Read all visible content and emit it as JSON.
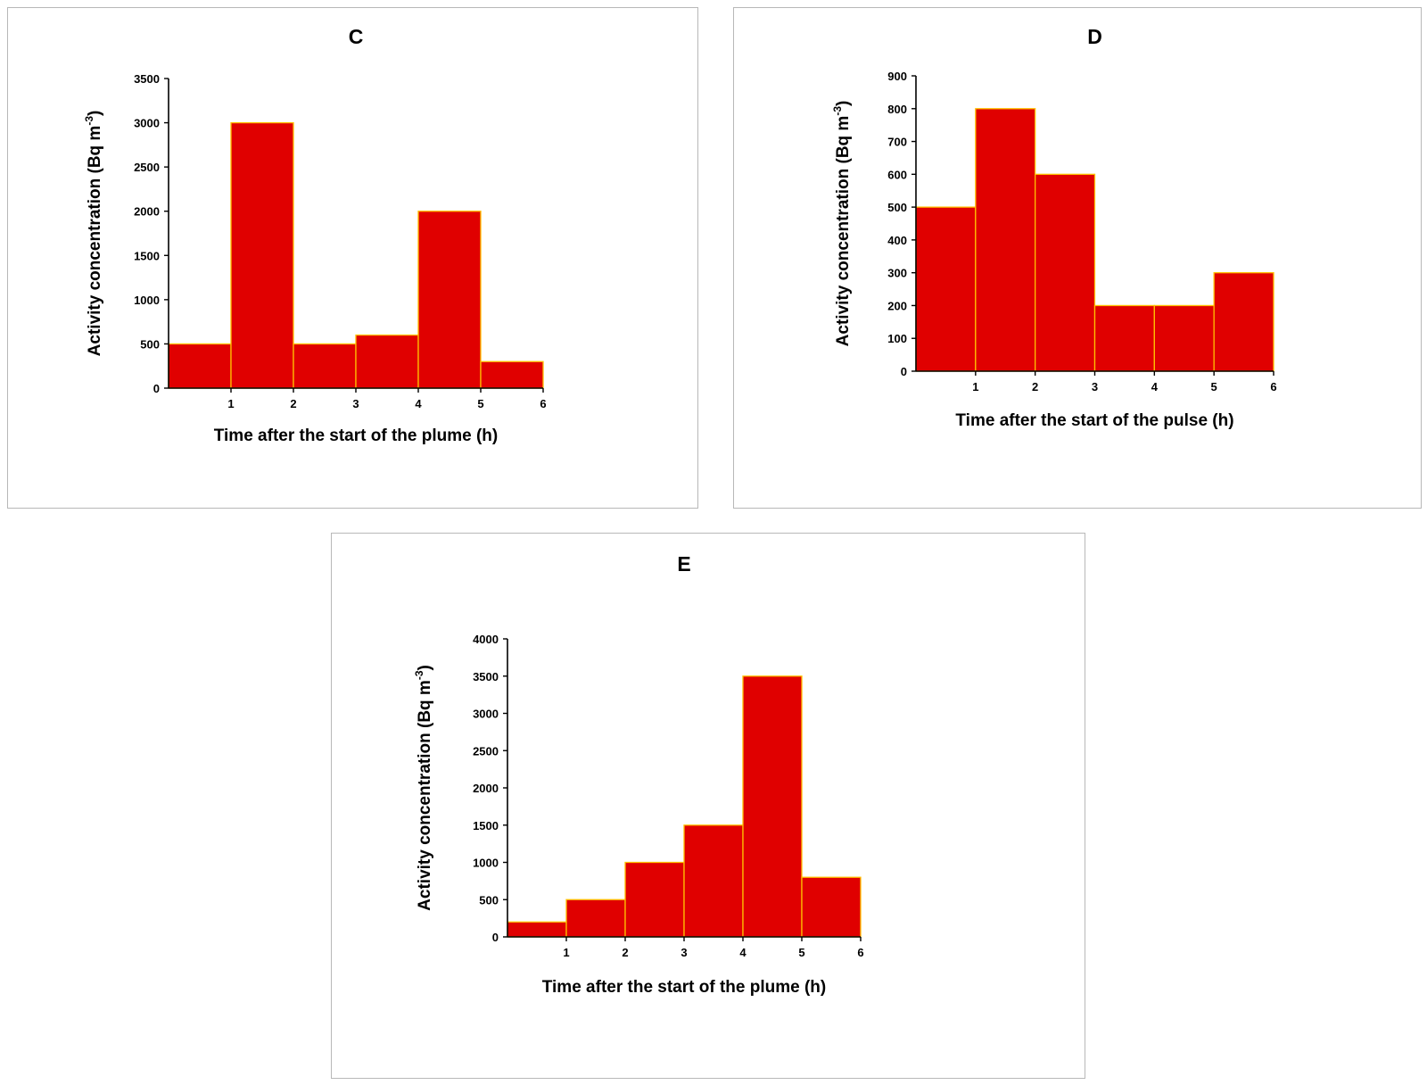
{
  "chart_data": [
    {
      "id": "C",
      "type": "bar",
      "title": "C",
      "categories": [
        "0-1",
        "1-2",
        "2-3",
        "3-4",
        "4-5",
        "5-6"
      ],
      "values": [
        500,
        3000,
        500,
        600,
        2000,
        300
      ],
      "xlabel": "Time after the start of the plume (h)",
      "ylabel": "Activity concentration (Bq m",
      "ylabel_sup": "-3",
      "ylabel_end": ")",
      "x_ticks": [
        "1",
        "2",
        "3",
        "4",
        "5",
        "6"
      ],
      "y_ticks": [
        "0",
        "500",
        "1000",
        "1500",
        "2000",
        "2500",
        "3000",
        "3500"
      ],
      "xlim": [
        0,
        6
      ],
      "ylim": [
        0,
        3500
      ],
      "grid": false,
      "bar_color": "#e00000",
      "edge_color": "#ffc000"
    },
    {
      "id": "D",
      "type": "bar",
      "title": "D",
      "categories": [
        "0-1",
        "1-2",
        "2-3",
        "3-4",
        "4-5",
        "5-6"
      ],
      "values": [
        500,
        800,
        600,
        200,
        200,
        300
      ],
      "xlabel": "Time after the start of the pulse (h)",
      "ylabel": "Activity concentration (Bq m",
      "ylabel_sup": "-3",
      "ylabel_end": ")",
      "x_ticks": [
        "1",
        "2",
        "3",
        "4",
        "5",
        "6"
      ],
      "y_ticks": [
        "0",
        "100",
        "200",
        "300",
        "400",
        "500",
        "600",
        "700",
        "800",
        "900"
      ],
      "xlim": [
        0,
        6
      ],
      "ylim": [
        0,
        900
      ],
      "grid": false,
      "bar_color": "#e00000",
      "edge_color": "#ffc000"
    },
    {
      "id": "E",
      "type": "bar",
      "title": "E",
      "categories": [
        "0-1",
        "1-2",
        "2-3",
        "3-4",
        "4-5",
        "5-6"
      ],
      "values": [
        200,
        500,
        1000,
        1500,
        3500,
        800
      ],
      "xlabel": "Time after the start of the plume (h)",
      "ylabel": "Activity concentration (Bq m",
      "ylabel_sup": "-3",
      "ylabel_end": ")",
      "x_ticks": [
        "1",
        "2",
        "3",
        "4",
        "5",
        "6"
      ],
      "y_ticks": [
        "0",
        "500",
        "1000",
        "1500",
        "2000",
        "2500",
        "3000",
        "3500",
        "4000"
      ],
      "xlim": [
        0,
        6
      ],
      "ylim": [
        0,
        4000
      ],
      "grid": false,
      "bar_color": "#e00000",
      "edge_color": "#ffc000"
    }
  ]
}
